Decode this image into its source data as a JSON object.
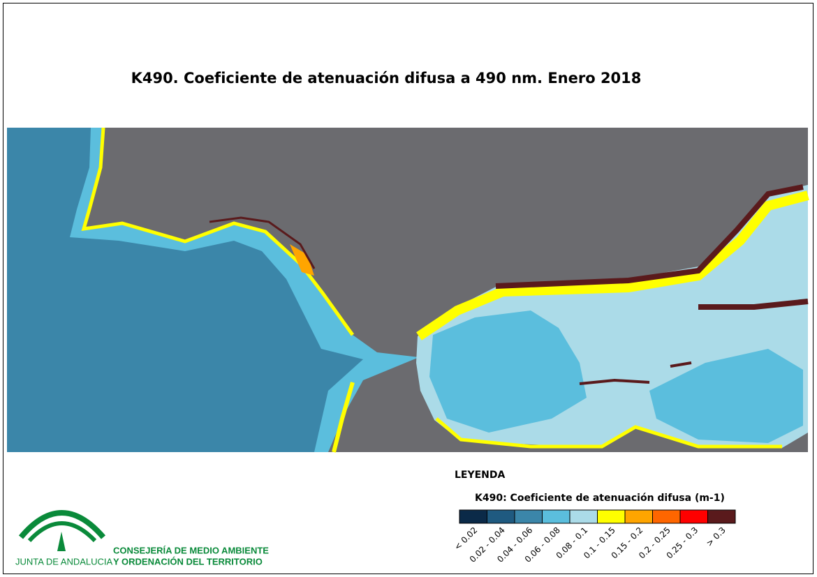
{
  "title": "K490. Coeficiente de atenuación difusa a 490 nm. Enero 2018",
  "legend": {
    "heading": "LEYENDA",
    "title": "K490: Coeficiente de atenuación difusa (m-1)",
    "classes": [
      {
        "label": "< 0.02",
        "color": "#0b2a48"
      },
      {
        "label": "0.02 - 0.04",
        "color": "#1f5a80"
      },
      {
        "label": "0.04 - 0.06",
        "color": "#3b86a9"
      },
      {
        "label": "0.06 - 0.08",
        "color": "#5bbedd"
      },
      {
        "label": "0.08 - 0.1",
        "color": "#abdbe8"
      },
      {
        "label": "0.1 - 0.15",
        "color": "#ffff00"
      },
      {
        "label": "0.15 - 0.2",
        "color": "#ffa500"
      },
      {
        "label": "0.2 - 0.25",
        "color": "#ff6600"
      },
      {
        "label": "0.25 - 0.3",
        "color": "#ff0000"
      },
      {
        "label": "> 0.3",
        "color": "#5a1a1c"
      }
    ]
  },
  "logo": {
    "name": "JUNTA DE ANDALUCIA",
    "line1": "CONSEJERÍA DE MEDIO AMBIENTE",
    "line2": "Y ORDENACIÓN DEL TERRITORIO"
  }
}
